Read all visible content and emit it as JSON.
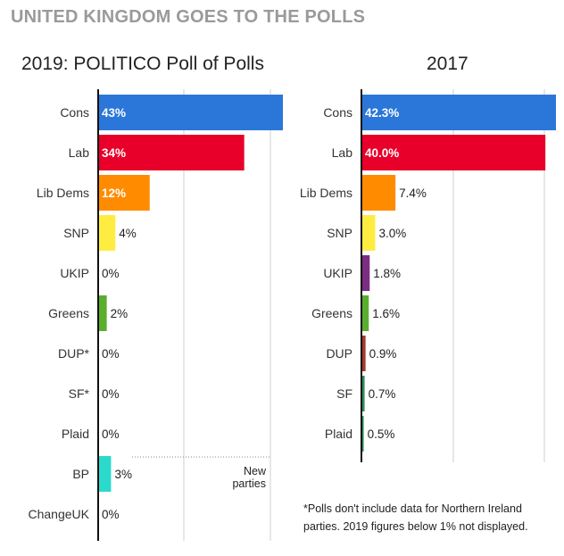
{
  "header": {
    "title": "UNITED KINGDOM GOES TO THE POLLS"
  },
  "annotation": {
    "new_parties": "New parties"
  },
  "footnote": "*Polls don't include data for Northern Ireland parties. 2019 figures below 1% not displayed.",
  "chart_data": [
    {
      "type": "bar",
      "orientation": "horizontal",
      "title": "2019: POLITICO Poll of Polls",
      "categories": [
        "Cons",
        "Lab",
        "Lib Dems",
        "SNP",
        "UKIP",
        "Greens",
        "DUP*",
        "SF*",
        "Plaid",
        "BP",
        "ChangeUK"
      ],
      "values": [
        43,
        34,
        12,
        4,
        0,
        2,
        0,
        0,
        0,
        3,
        0
      ],
      "labels": [
        "43%",
        "34%",
        "12%",
        "4%",
        "0%",
        "2%",
        "0%",
        "0%",
        "0%",
        "3%",
        "0%"
      ],
      "colors": [
        "#2b77d9",
        "#e8002a",
        "#ff8c00",
        "#ffec40",
        "#7b2d83",
        "#5aae2e",
        "#a33a2e",
        "#2f8f5b",
        "#2f8f5b",
        "#2bdacb",
        "#6a3d9a"
      ],
      "xlim": [
        0,
        43
      ],
      "grid": true
    },
    {
      "type": "bar",
      "orientation": "horizontal",
      "title": "2017",
      "categories": [
        "Cons",
        "Lab",
        "Lib Dems",
        "SNP",
        "UKIP",
        "Greens",
        "DUP",
        "SF",
        "Plaid"
      ],
      "values": [
        42.3,
        40.0,
        7.4,
        3.0,
        1.8,
        1.6,
        0.9,
        0.7,
        0.5
      ],
      "labels": [
        "42.3%",
        "40.0%",
        "7.4%",
        "3.0%",
        "1.8%",
        "1.6%",
        "0.9%",
        "0.7%",
        "0.5%"
      ],
      "colors": [
        "#2b77d9",
        "#e8002a",
        "#ff8c00",
        "#ffec40",
        "#7b2d83",
        "#5aae2e",
        "#a33a2e",
        "#2f8f5b",
        "#2f8f5b"
      ],
      "xlim": [
        0,
        42.3
      ],
      "grid": true
    }
  ]
}
